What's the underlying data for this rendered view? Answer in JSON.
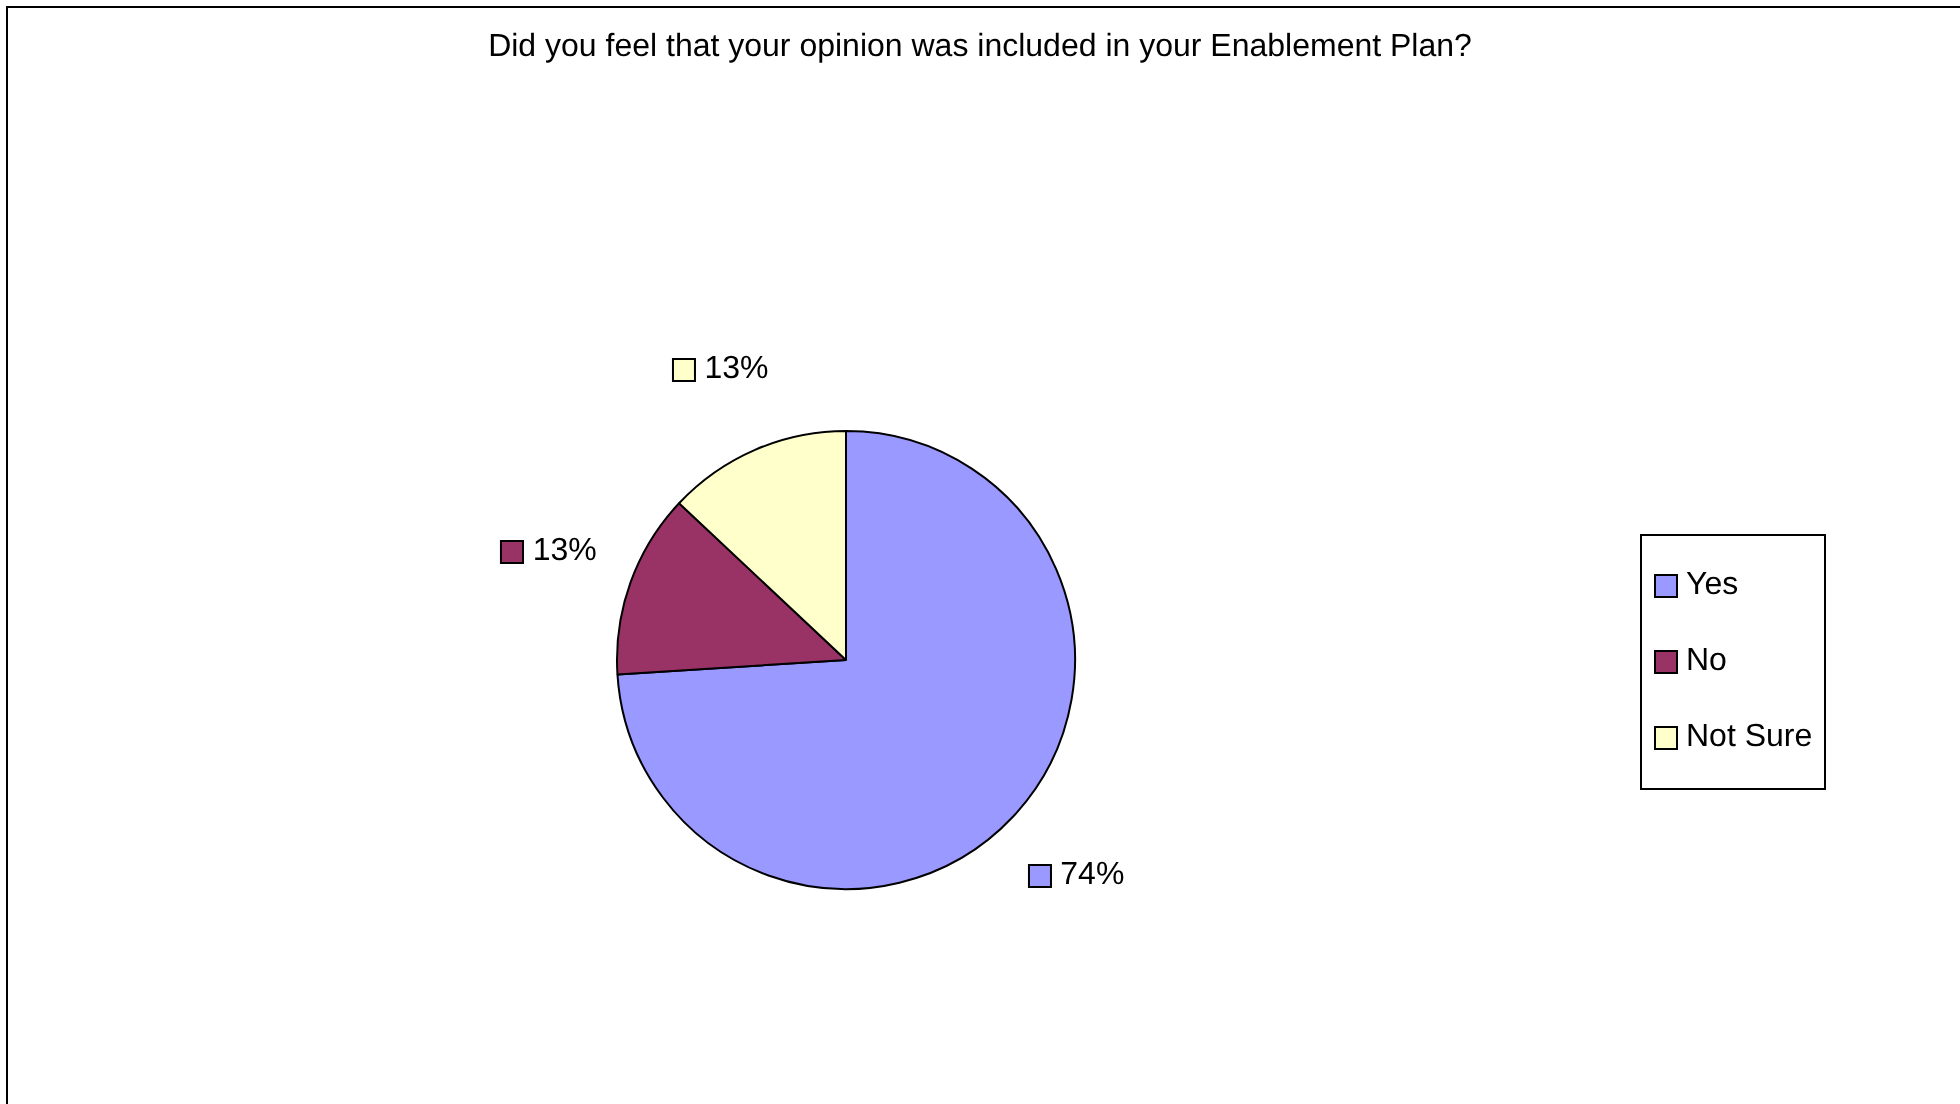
{
  "chart_data": {
    "type": "pie",
    "title": "Did you feel that your opinion was included in your Enablement Plan?",
    "categories": [
      "Yes",
      "No",
      "Not Sure"
    ],
    "values": [
      74,
      13,
      13
    ],
    "value_labels": [
      "74%",
      "13%",
      "13%"
    ],
    "colors": [
      "#9999ff",
      "#993366",
      "#ffffcc"
    ],
    "legend": "right"
  }
}
